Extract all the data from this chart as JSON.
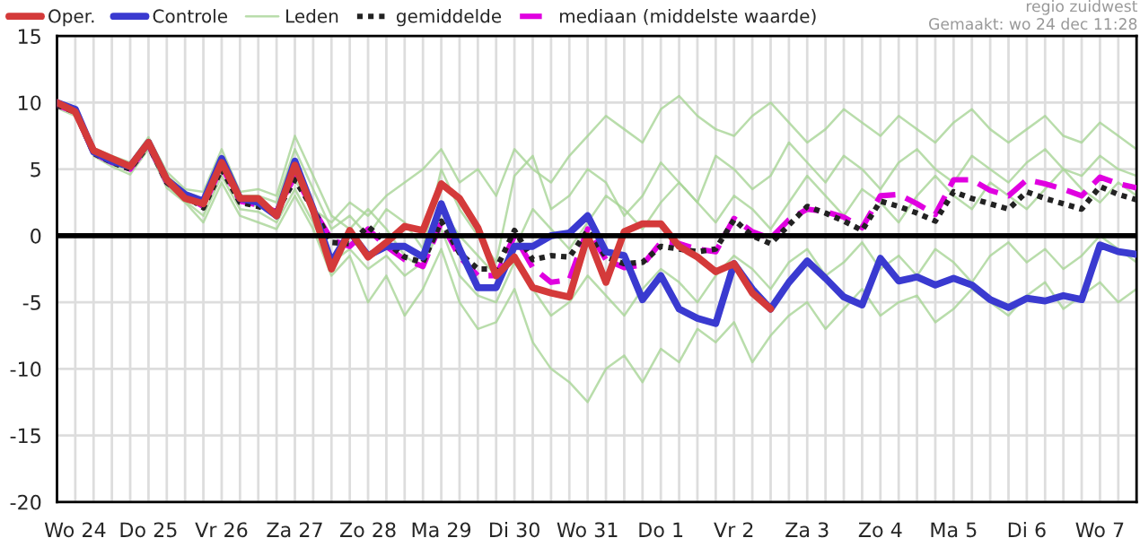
{
  "chart_data": {
    "type": "line",
    "annotations": [
      "regio zuidwest",
      "Gemaakt: wo 24 dec 11:28"
    ],
    "categories": [
      null,
      "Wo 24",
      null,
      null,
      null,
      "Do 25",
      null,
      null,
      null,
      "Vr 26",
      null,
      null,
      null,
      "Za 27",
      null,
      null,
      null,
      "Zo 28",
      null,
      null,
      null,
      "Ma 29",
      null,
      null,
      null,
      "Di 30",
      null,
      null,
      null,
      "Wo 31",
      null,
      null,
      null,
      "Do 1",
      null,
      null,
      null,
      "Vr 2",
      null,
      null,
      null,
      "Za 3",
      null,
      null,
      null,
      "Zo 4",
      null,
      null,
      null,
      "Ma 5",
      null,
      null,
      null,
      "Di 6",
      null,
      null,
      null,
      "Wo 7",
      null,
      null
    ],
    "ylim": [
      -20,
      15
    ],
    "yticks": [
      -20,
      -15,
      -10,
      -5,
      0,
      5,
      10,
      15
    ],
    "grid": true,
    "legend": "top",
    "ref_lines": [
      {
        "axis": "y",
        "value": 0,
        "color": "#000000"
      }
    ],
    "series": [
      {
        "name": "Oper.",
        "color": "#d43a3a",
        "values": [
          10.0,
          9.3,
          6.4,
          5.8,
          5.2,
          7.0,
          4.2,
          2.8,
          2.4,
          5.5,
          2.8,
          2.8,
          1.5,
          5.3,
          1.9,
          -2.5,
          0.4,
          -1.6,
          -0.5,
          0.7,
          0.4,
          3.9,
          2.8,
          0.6,
          -3.0,
          -1.6,
          -3.9,
          -4.3,
          -4.6,
          0.0,
          -3.5,
          0.3,
          0.9,
          0.9,
          -0.8,
          -1.6,
          -2.7,
          -2.1,
          -4.3,
          -5.5,
          null,
          null,
          null,
          null,
          null,
          null,
          null,
          null,
          null,
          null,
          null,
          null,
          null,
          null,
          null,
          null,
          null,
          null,
          null,
          null
        ]
      },
      {
        "name": "Controle",
        "color": "#3a3ad0",
        "values": [
          10.0,
          9.5,
          6.3,
          5.6,
          5.2,
          7.0,
          4.2,
          3.1,
          2.6,
          5.8,
          2.8,
          2.5,
          1.5,
          5.6,
          2.0,
          -2.0,
          0.3,
          -1.5,
          -0.8,
          -0.8,
          -1.6,
          2.4,
          -1.0,
          -3.9,
          -3.9,
          -0.8,
          -0.8,
          0.0,
          0.2,
          1.5,
          -1.2,
          -1.5,
          -4.8,
          -3.0,
          -5.5,
          -6.2,
          -6.6,
          -2.1,
          -4.0,
          -5.5,
          -3.5,
          -1.9,
          -3.2,
          -4.6,
          -5.2,
          -1.7,
          -3.4,
          -3.1,
          -3.7,
          -3.2,
          -3.7,
          -4.8,
          -5.4,
          -4.7,
          -4.9,
          -4.5,
          -4.8,
          -0.7,
          -1.2,
          -1.4
        ]
      },
      {
        "name": "Leden",
        "color": "#a8d596",
        "values": [
          9.8,
          9.3,
          6.2,
          5.5,
          5.0,
          6.8,
          4.0,
          3.0,
          2.1,
          5.0,
          2.5,
          2.2,
          1.8,
          4.2,
          2.0,
          1.0,
          2.5,
          1.5,
          3.0,
          4.0,
          5.0,
          6.5,
          4.0,
          5.0,
          3.0,
          6.5,
          5.0,
          4.0,
          6.0,
          7.5,
          9.0,
          8.0,
          7.0,
          9.5,
          10.5,
          9.0,
          8.0,
          7.5,
          9.0,
          10.0,
          8.5,
          7.0,
          8.0,
          9.5,
          8.5,
          7.5,
          9.0,
          8.0,
          7.0,
          8.5,
          9.5,
          8.0,
          7.0,
          8.0,
          9.0,
          7.5,
          7.0,
          8.5,
          7.5,
          6.5
        ]
      },
      {
        "name": "gemiddelde",
        "color": "#222222",
        "line_style": "dotted",
        "values": [
          9.8,
          9.3,
          6.2,
          5.5,
          5.0,
          6.8,
          4.0,
          3.0,
          2.1,
          5.0,
          2.5,
          2.2,
          1.8,
          4.2,
          2.0,
          -0.5,
          -0.6,
          0.7,
          -0.5,
          -1.6,
          -2.0,
          1.1,
          -1.3,
          -2.5,
          -2.5,
          0.4,
          -1.8,
          -1.5,
          -1.6,
          0.4,
          -1.6,
          -2.1,
          -2.0,
          -0.8,
          -1.0,
          -1.2,
          -1.0,
          1.2,
          0.0,
          -0.6,
          0.8,
          2.2,
          1.7,
          1.1,
          0.4,
          2.6,
          2.2,
          1.7,
          1.1,
          3.3,
          2.8,
          2.4,
          2.0,
          3.3,
          2.8,
          2.4,
          2.0,
          3.7,
          3.1,
          2.7
        ]
      },
      {
        "name": "mediaan (middelste waarde)",
        "color": "#e000e0",
        "line_style": "dashed",
        "values": [
          9.8,
          9.3,
          6.2,
          5.5,
          5.0,
          6.8,
          4.0,
          3.0,
          2.2,
          5.2,
          2.6,
          2.3,
          1.8,
          4.5,
          2.0,
          -0.3,
          -0.8,
          0.5,
          -0.8,
          -1.8,
          -2.3,
          1.0,
          -1.6,
          -3.0,
          -3.0,
          0.0,
          -2.4,
          -3.5,
          -3.3,
          0.5,
          -1.8,
          -2.4,
          -2.2,
          -0.5,
          -0.6,
          -1.0,
          -1.2,
          1.3,
          0.3,
          -0.2,
          1.2,
          2.0,
          1.8,
          1.4,
          0.6,
          3.0,
          3.1,
          2.4,
          1.6,
          4.2,
          4.2,
          3.4,
          3.0,
          4.2,
          3.9,
          3.5,
          3.0,
          4.4,
          3.9,
          3.6
        ]
      },
      {
        "color": "#a8d596",
        "values": [
          9.6,
          9.0,
          6.0,
          5.2,
          4.6,
          6.5,
          3.6,
          2.5,
          1.0,
          4.0,
          1.5,
          1.0,
          0.5,
          3.0,
          0.5,
          -3.0,
          -1.5,
          -5.0,
          -3.0,
          -6.0,
          -4.0,
          -1.0,
          -5.0,
          -7.0,
          -6.5,
          -4.0,
          -8.0,
          -10.0,
          -11.0,
          -12.5,
          -10.0,
          -9.0,
          -11.0,
          -8.5,
          -9.5,
          -7.0,
          -8.0,
          -6.5,
          -9.5,
          -7.5,
          -6.0,
          -5.0,
          -7.0,
          -5.5,
          -4.0,
          -6.0,
          -5.0,
          -4.5,
          -6.5,
          -5.5,
          -4.0,
          -5.0,
          -6.0,
          -4.5,
          -3.5,
          -5.5,
          -4.5,
          -3.5,
          -5.0,
          -4.0
        ]
      },
      {
        "color": "#a8d596",
        "values": [
          10.0,
          9.4,
          6.5,
          5.8,
          5.3,
          7.2,
          4.5,
          3.3,
          2.8,
          6.0,
          3.0,
          3.0,
          2.5,
          6.5,
          3.5,
          0.5,
          1.5,
          0.0,
          2.0,
          1.0,
          -1.0,
          5.0,
          2.0,
          0.0,
          -2.0,
          4.5,
          6.0,
          2.0,
          3.0,
          5.0,
          4.0,
          1.5,
          3.0,
          5.5,
          4.0,
          2.5,
          6.0,
          5.0,
          3.5,
          4.5,
          7.0,
          5.5,
          4.0,
          6.0,
          5.0,
          3.5,
          5.5,
          6.5,
          5.0,
          4.0,
          6.0,
          5.0,
          4.0,
          5.5,
          6.5,
          5.0,
          4.5,
          6.0,
          5.0,
          4.5
        ]
      },
      {
        "color": "#a8d596",
        "values": [
          9.7,
          9.2,
          6.1,
          5.4,
          4.9,
          6.6,
          3.8,
          2.6,
          1.5,
          4.5,
          2.0,
          1.8,
          1.0,
          3.5,
          1.0,
          -2.0,
          -1.0,
          -2.5,
          -1.5,
          -3.0,
          -2.0,
          0.5,
          -3.0,
          -4.5,
          -5.0,
          -2.0,
          -4.0,
          -6.0,
          -5.0,
          -3.0,
          -4.5,
          -6.0,
          -4.0,
          -2.5,
          -3.5,
          -5.0,
          -3.0,
          -1.5,
          -2.5,
          -4.0,
          -2.0,
          -1.0,
          -3.0,
          -2.0,
          -0.5,
          -2.5,
          -1.5,
          -3.0,
          -1.0,
          -2.0,
          -3.5,
          -1.5,
          -0.5,
          -2.0,
          -1.0,
          -2.5,
          -1.5,
          0.0,
          -1.0,
          -2.0
        ]
      },
      {
        "color": "#a8d596",
        "values": [
          10.1,
          9.6,
          6.6,
          6.0,
          5.5,
          7.4,
          4.8,
          3.5,
          3.3,
          6.5,
          3.3,
          3.5,
          3.0,
          7.5,
          4.5,
          1.5,
          0.5,
          2.0,
          0.5,
          -1.5,
          -2.5,
          2.0,
          0.0,
          -1.5,
          -3.0,
          -1.0,
          2.0,
          0.5,
          -1.0,
          1.0,
          3.0,
          2.0,
          0.5,
          2.5,
          4.0,
          2.5,
          1.0,
          3.0,
          2.0,
          0.5,
          2.5,
          4.5,
          3.0,
          1.5,
          3.5,
          2.5,
          1.0,
          3.0,
          4.5,
          3.0,
          2.0,
          4.0,
          3.0,
          2.0,
          3.5,
          5.0,
          3.5,
          2.5,
          4.0,
          3.0
        ]
      }
    ]
  }
}
